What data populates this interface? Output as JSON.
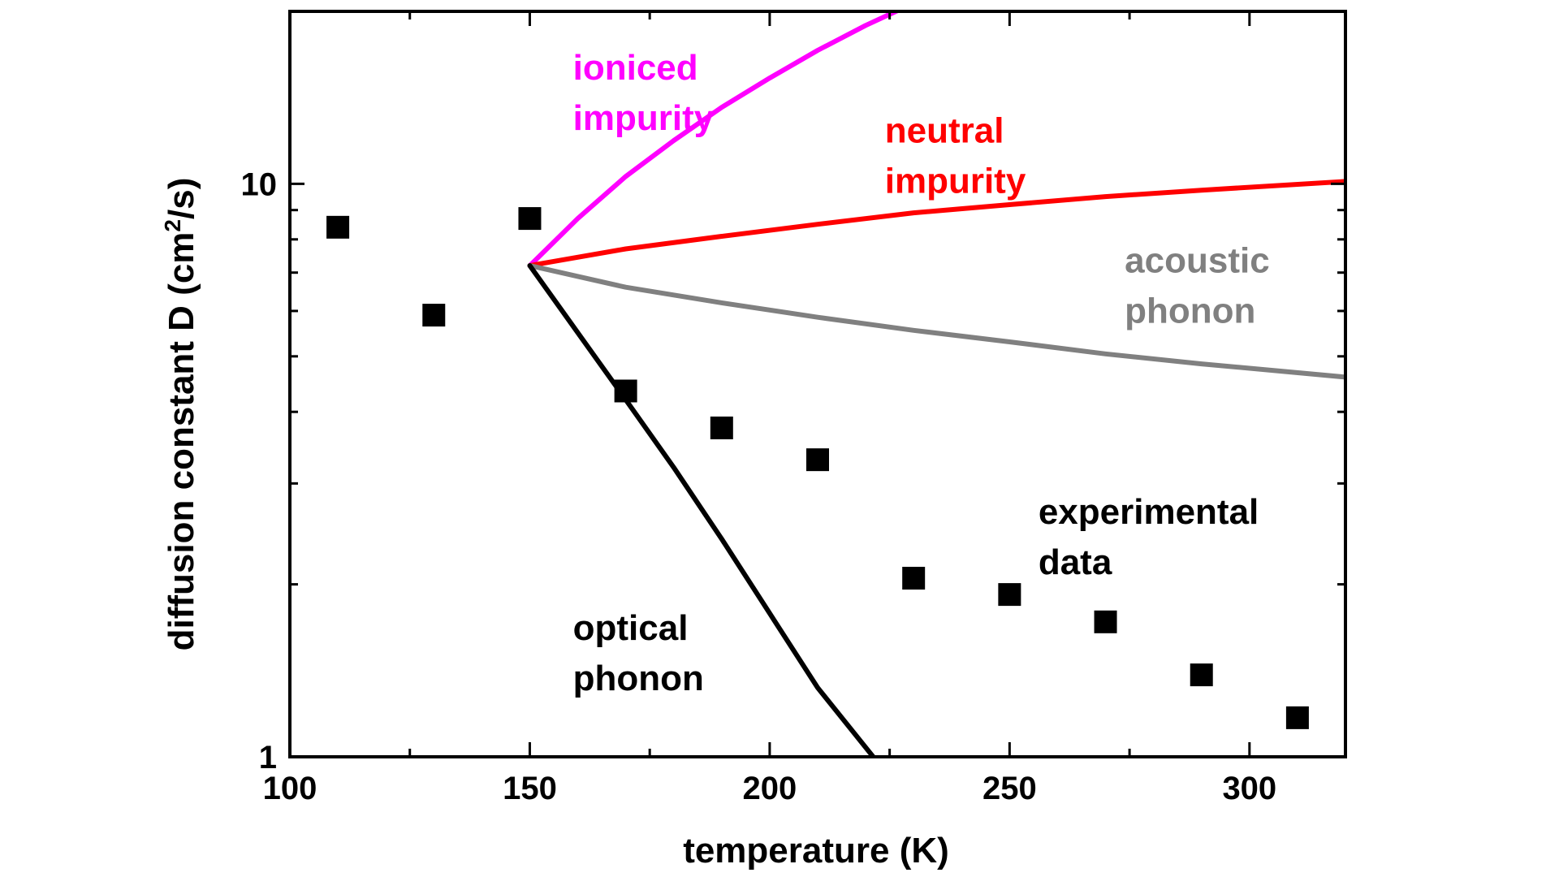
{
  "chart_data": {
    "type": "scatter",
    "title": "",
    "xlabel": "temperature (K)",
    "ylabel_main": "diffusion constant D (cm",
    "ylabel_sup": "2",
    "ylabel_tail": "/s)",
    "xlim": [
      100,
      320
    ],
    "ylim": [
      1,
      20
    ],
    "yscale": "log",
    "grid": false,
    "x_ticks": [
      100,
      150,
      200,
      250,
      300
    ],
    "x_tick_labels": [
      "100",
      "150",
      "200",
      "250",
      "300"
    ],
    "y_ticks": [
      1,
      10
    ],
    "y_tick_labels": [
      "1",
      "10"
    ],
    "series": [
      {
        "kind": "points",
        "color": "#000000",
        "x": [
          110,
          130,
          150,
          170,
          190,
          210,
          230,
          250,
          270,
          290,
          310
        ],
        "y": [
          8.4,
          5.9,
          8.7,
          4.35,
          3.75,
          3.3,
          2.05,
          1.92,
          1.72,
          1.39,
          1.17
        ]
      },
      {
        "kind": "line",
        "color": "#ff00ff",
        "x": [
          150,
          160,
          170,
          180,
          190,
          200,
          210,
          220,
          228
        ],
        "y": [
          7.2,
          8.7,
          10.3,
          11.9,
          13.6,
          15.3,
          17.1,
          18.9,
          20.3
        ]
      },
      {
        "kind": "line",
        "color": "#ff0000",
        "x": [
          150,
          170,
          190,
          210,
          230,
          250,
          270,
          290,
          320
        ],
        "y": [
          7.2,
          7.7,
          8.1,
          8.5,
          8.9,
          9.2,
          9.5,
          9.75,
          10.1
        ]
      },
      {
        "kind": "line",
        "color": "#808080",
        "x": [
          150,
          170,
          190,
          210,
          230,
          250,
          270,
          290,
          320
        ],
        "y": [
          7.2,
          6.6,
          6.2,
          5.85,
          5.55,
          5.3,
          5.05,
          4.85,
          4.6
        ]
      },
      {
        "kind": "line",
        "color": "#000000",
        "x": [
          150,
          160,
          170,
          180,
          190,
          200,
          210,
          222
        ],
        "y": [
          7.2,
          5.5,
          4.2,
          3.2,
          2.4,
          1.78,
          1.32,
          0.99
        ]
      }
    ],
    "annotations": [
      {
        "lines": [
          "ioniced",
          "impurity"
        ],
        "color": "#ff00ff",
        "x": 159,
        "y": 15.2
      },
      {
        "lines": [
          "neutral",
          "impurity"
        ],
        "color": "#ff0000",
        "x": 224,
        "y": 11.8
      },
      {
        "lines": [
          "acoustic",
          "phonon"
        ],
        "color": "#808080",
        "x": 274,
        "y": 7.0
      },
      {
        "lines": [
          "experimental",
          "data"
        ],
        "color": "#000000",
        "x": 256,
        "y": 2.55
      },
      {
        "lines": [
          "optical",
          "phonon"
        ],
        "color": "#000000",
        "x": 159,
        "y": 1.6
      }
    ]
  }
}
